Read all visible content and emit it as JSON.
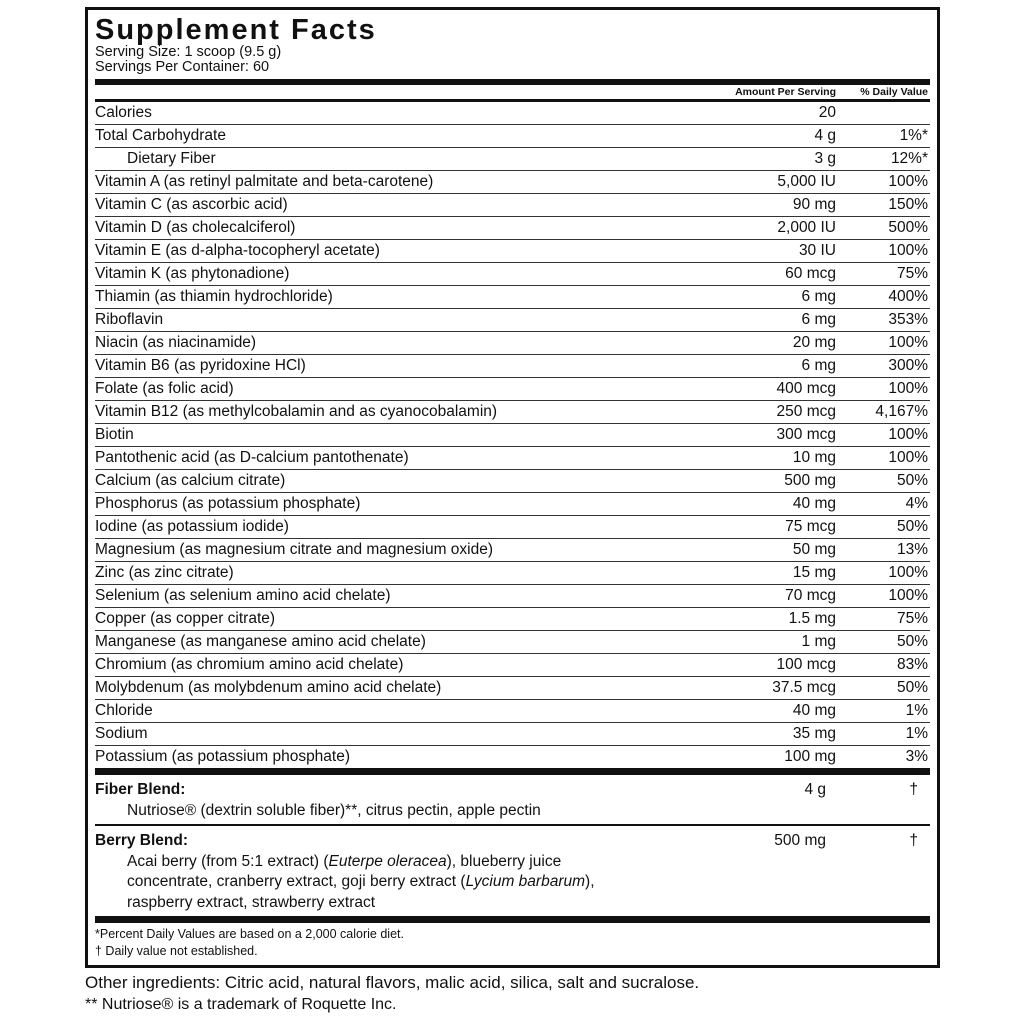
{
  "title": "Supplement Facts",
  "serving_size": "Serving Size: 1 scoop (9.5 g)",
  "servings_per_container": "Servings Per Container: 60",
  "header": {
    "amount": "Amount Per Serving",
    "dv": "% Daily Value"
  },
  "rows": [
    {
      "name": "Calories",
      "amount": "20",
      "dv": ""
    },
    {
      "name": "Total Carbohydrate",
      "amount": "4 g",
      "dv": "1%*"
    },
    {
      "name": "Dietary Fiber",
      "amount": "3 g",
      "dv": "12%*",
      "indent": true
    },
    {
      "name": "Vitamin A (as retinyl palmitate and beta-carotene)",
      "amount": "5,000 IU",
      "dv": "100%"
    },
    {
      "name": "Vitamin C (as ascorbic acid)",
      "amount": "90 mg",
      "dv": "150%"
    },
    {
      "name": "Vitamin D (as cholecalciferol)",
      "amount": "2,000 IU",
      "dv": "500%"
    },
    {
      "name": "Vitamin E (as d-alpha-tocopheryl acetate)",
      "amount": "30 IU",
      "dv": "100%"
    },
    {
      "name": "Vitamin K (as phytonadione)",
      "amount": "60 mcg",
      "dv": "75%"
    },
    {
      "name": "Thiamin (as thiamin hydrochloride)",
      "amount": "6 mg",
      "dv": "400%"
    },
    {
      "name": "Riboflavin",
      "amount": "6 mg",
      "dv": "353%"
    },
    {
      "name": "Niacin (as niacinamide)",
      "amount": "20 mg",
      "dv": "100%"
    },
    {
      "name": "Vitamin B6 (as pyridoxine HCl)",
      "amount": "6 mg",
      "dv": "300%"
    },
    {
      "name": "Folate (as folic acid)",
      "amount": "400 mcg",
      "dv": "100%"
    },
    {
      "name": "Vitamin B12 (as methylcobalamin and as cyanocobalamin)",
      "amount": "250 mcg",
      "dv": "4,167%"
    },
    {
      "name": "Biotin",
      "amount": "300 mcg",
      "dv": "100%"
    },
    {
      "name": "Pantothenic acid (as D-calcium pantothenate)",
      "amount": "10 mg",
      "dv": "100%"
    },
    {
      "name": "Calcium (as calcium citrate)",
      "amount": "500 mg",
      "dv": "50%"
    },
    {
      "name": "Phosphorus (as potassium phosphate)",
      "amount": "40 mg",
      "dv": "4%"
    },
    {
      "name": "Iodine (as potassium iodide)",
      "amount": "75 mcg",
      "dv": "50%"
    },
    {
      "name": "Magnesium (as magnesium citrate and magnesium oxide)",
      "amount": "50 mg",
      "dv": "13%"
    },
    {
      "name": "Zinc (as zinc citrate)",
      "amount": "15 mg",
      "dv": "100%"
    },
    {
      "name": "Selenium (as selenium amino acid chelate)",
      "amount": "70 mcg",
      "dv": "100%"
    },
    {
      "name": "Copper (as copper citrate)",
      "amount": "1.5 mg",
      "dv": "75%"
    },
    {
      "name": "Manganese (as manganese amino acid chelate)",
      "amount": "1 mg",
      "dv": "50%"
    },
    {
      "name": "Chromium (as chromium amino acid chelate)",
      "amount": "100 mcg",
      "dv": "83%"
    },
    {
      "name": "Molybdenum (as molybdenum amino acid chelate)",
      "amount": "37.5 mcg",
      "dv": "50%"
    },
    {
      "name": "Chloride",
      "amount": "40 mg",
      "dv": "1%"
    },
    {
      "name": "Sodium",
      "amount": "35 mg",
      "dv": "1%"
    },
    {
      "name": "Potassium (as potassium phosphate)",
      "amount": "100 mg",
      "dv": "3%"
    }
  ],
  "fiber_blend": {
    "name": "Fiber Blend:",
    "desc": "Nutriose® (dextrin soluble fiber)**, citrus pectin, apple pectin",
    "amount": "4 g",
    "dv": "†"
  },
  "berry_blend": {
    "name": "Berry Blend:",
    "amount": "500 mg",
    "dv": "†",
    "desc_parts": [
      {
        "text": "Acai berry (from 5:1 extract) (",
        "italic": false
      },
      {
        "text": "Euterpe oleracea",
        "italic": true
      },
      {
        "text": "), blueberry juice",
        "italic": false,
        "br": true
      },
      {
        "text": "concentrate, cranberry extract, goji berry extract (",
        "italic": false
      },
      {
        "text": "Lycium barbarum",
        "italic": true
      },
      {
        "text": "),",
        "italic": false,
        "br": true
      },
      {
        "text": "raspberry extract, strawberry extract",
        "italic": false
      }
    ]
  },
  "footnotes": [
    "*Percent Daily Values are based on a 2,000 calorie diet.",
    "† Daily value not established."
  ],
  "other_ingredients": "Other ingredients: Citric acid, natural flavors, malic acid, silica, salt and sucralose.",
  "trademark_note": "** Nutriose® is a trademark of Roquette Inc."
}
